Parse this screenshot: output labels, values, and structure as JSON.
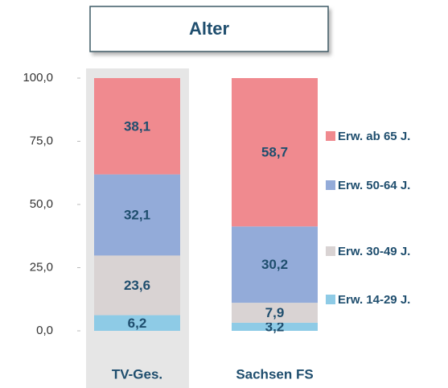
{
  "chart_data": {
    "type": "stacked_bar",
    "title": "Alter",
    "categories": [
      "TV-Ges.",
      "Sachsen FS"
    ],
    "series": [
      {
        "name": "Erw. 14-29 J.",
        "color": "#8ecbe6",
        "values": [
          6.2,
          3.2
        ],
        "value_labels": [
          "6,2",
          "3,2"
        ]
      },
      {
        "name": "Erw. 30-49 J.",
        "color": "#d9d3d3",
        "values": [
          23.6,
          7.9
        ],
        "value_labels": [
          "23,6",
          "7,9"
        ]
      },
      {
        "name": "Erw. 50-64 J.",
        "color": "#93abd9",
        "values": [
          32.1,
          30.2
        ],
        "value_labels": [
          "32,1",
          "30,2"
        ]
      },
      {
        "name": "Erw. ab 65 J.",
        "color": "#f08a8f",
        "values": [
          38.1,
          58.7
        ],
        "value_labels": [
          "38,1",
          "58,7"
        ]
      }
    ],
    "ylim": [
      0,
      100
    ],
    "yticks": [
      {
        "value": 0,
        "label": "0,0"
      },
      {
        "value": 25,
        "label": "25,0"
      },
      {
        "value": 50,
        "label": "50,0"
      },
      {
        "value": 75,
        "label": "75,0"
      },
      {
        "value": 100,
        "label": "100,0"
      }
    ],
    "legend": "right"
  }
}
